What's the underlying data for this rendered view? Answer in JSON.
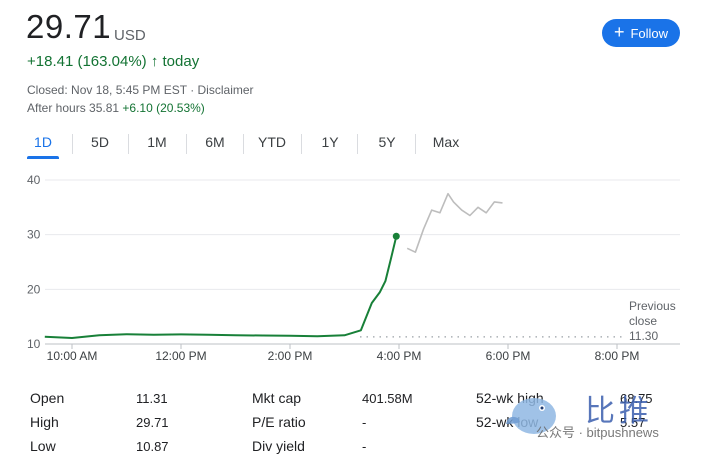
{
  "quote": {
    "price": "29.71",
    "currency": "USD",
    "change": "+18.41 (163.04%)",
    "change_arrow": "↑",
    "change_period": "today",
    "closed_text": "Closed: Nov 18, 5:45 PM EST · Disclaimer",
    "after_hours_label": "After hours 35.81",
    "after_hours_change": "+6.10 (20.53%)"
  },
  "follow_button": {
    "label": "Follow",
    "color": "#1a73e8"
  },
  "tabs": [
    {
      "label": "1D",
      "active": true
    },
    {
      "label": "5D"
    },
    {
      "label": "1M"
    },
    {
      "label": "6M"
    },
    {
      "label": "YTD"
    },
    {
      "label": "1Y"
    },
    {
      "label": "5Y"
    },
    {
      "label": "Max"
    }
  ],
  "chart_data": {
    "type": "line",
    "y_ticks": [
      "40",
      "30",
      "20",
      "10"
    ],
    "x_ticks": [
      "10:00 AM",
      "12:00 PM",
      "2:00 PM",
      "4:00 PM",
      "6:00 PM",
      "8:00 PM"
    ],
    "ylim": [
      10,
      40
    ],
    "previous_close": {
      "label_line1": "Previous",
      "label_line2": "close",
      "value": "11.30",
      "y": 11.3
    },
    "colors": {
      "regular": "#188038",
      "after_hours": "#bdbdbd"
    },
    "series": [
      {
        "session": "regular",
        "x_hours": [
          9.5,
          10.0,
          10.5,
          11.0,
          11.5,
          12.0,
          12.5,
          13.0,
          13.5,
          14.0,
          14.5,
          15.0,
          15.3,
          15.5,
          15.65,
          15.75,
          15.85,
          15.95
        ],
        "y": [
          11.31,
          11.1,
          11.6,
          11.8,
          11.7,
          11.75,
          11.7,
          11.6,
          11.55,
          11.5,
          11.4,
          11.6,
          12.5,
          17.5,
          19.5,
          21.5,
          25.5,
          29.71
        ]
      },
      {
        "session": "after_hours",
        "x_hours": [
          16.15,
          16.3,
          16.45,
          16.6,
          16.75,
          16.9,
          17.0,
          17.15,
          17.3,
          17.45,
          17.6,
          17.75,
          17.9
        ],
        "y": [
          27.5,
          26.8,
          31.0,
          34.5,
          34.0,
          37.5,
          36.0,
          34.5,
          33.5,
          35.0,
          34.0,
          36.0,
          35.81
        ]
      }
    ]
  },
  "stats": {
    "col1": [
      {
        "label": "Open",
        "value": "11.31"
      },
      {
        "label": "High",
        "value": "29.71"
      },
      {
        "label": "Low",
        "value": "10.87"
      }
    ],
    "col2": [
      {
        "label": "Mkt cap",
        "value": "401.58M"
      },
      {
        "label": "P/E ratio",
        "value": "-"
      },
      {
        "label": "Div yield",
        "value": "-"
      }
    ],
    "col3": [
      {
        "label": "52-wk high",
        "value": "68.75"
      },
      {
        "label": "52-wk low",
        "value": "5.57"
      }
    ]
  },
  "watermark": {
    "title": "比推",
    "subtitle": "公众号 · bitpushnews"
  }
}
